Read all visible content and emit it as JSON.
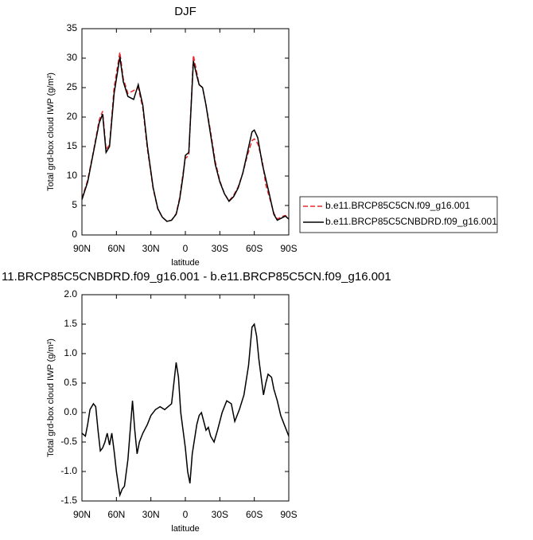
{
  "chart_data": [
    {
      "type": "line",
      "title": "DJF",
      "xlabel": "latitude",
      "ylabel": "Total grd-box cloud IWP (g/m²)",
      "x": [
        90,
        85,
        80,
        75,
        72,
        69,
        66,
        62,
        57,
        54,
        50,
        45,
        41,
        37,
        33,
        28,
        24,
        20,
        16,
        12,
        8,
        5,
        2,
        0,
        -3,
        -7,
        -10,
        -12,
        -15,
        -18,
        -22,
        -26,
        -30,
        -34,
        -38,
        -42,
        -46,
        -50,
        -54,
        -58,
        -60,
        -63,
        -67,
        -70,
        -73,
        -77,
        -80,
        -85,
        -87,
        -90
      ],
      "series": [
        {
          "name": "b.e11.BRCP85C5CN.f09_g16.001",
          "color": "#e8282d",
          "line_style": "dashed",
          "values": [
            6.2,
            9.3,
            14.2,
            19.5,
            21,
            14.5,
            15.3,
            25,
            31,
            26.5,
            24,
            24.5,
            25,
            21.5,
            14.5,
            7.8,
            4.4,
            3,
            2.3,
            2.5,
            3.6,
            6.3,
            10.5,
            13,
            13.5,
            30.5,
            27.5,
            25.5,
            25,
            22,
            17.5,
            12.5,
            9.2,
            7,
            5.8,
            6.7,
            8.2,
            10.5,
            13.5,
            16,
            16.3,
            15.5,
            12.5,
            8.5,
            6.5,
            3.7,
            2.7,
            3.2,
            3.3,
            2.8
          ]
        },
        {
          "name": "b.e11.BRCP85C5CNBDRD.f09_g16.001",
          "color": "#000000",
          "line_style": "solid",
          "values": [
            6,
            9,
            14,
            19,
            20.5,
            14,
            15,
            24,
            30.2,
            26,
            23.5,
            23,
            25.5,
            22,
            15,
            8,
            4.5,
            3,
            2.3,
            2.5,
            3.5,
            6,
            10,
            13.5,
            14,
            29.5,
            27,
            25.5,
            25,
            22,
            17,
            12,
            9,
            7,
            5.7,
            6.5,
            8,
            10.5,
            14,
            17.5,
            17.8,
            16.5,
            12,
            9.5,
            7,
            3.5,
            2.5,
            3,
            3.2,
            2.7
          ]
        }
      ],
      "xlim": [
        90,
        -90
      ],
      "xticks": [
        {
          "value": 90,
          "label": "90N"
        },
        {
          "value": 60,
          "label": "60N"
        },
        {
          "value": 30,
          "label": "30N"
        },
        0,
        {
          "value": -30,
          "label": "30S"
        },
        {
          "value": -60,
          "label": "60S"
        },
        {
          "value": -90,
          "label": "90S"
        }
      ],
      "ylim": [
        0,
        35
      ],
      "yticks": [
        0,
        5,
        10,
        15,
        20,
        25,
        30,
        35
      ],
      "legend": "outside-right"
    },
    {
      "type": "line",
      "title": "11.BRCP85C5CNBDRD.f09_g16.001 - b.e11.BRCP85C5CN.f09_g16.001",
      "xlabel": "latitude",
      "ylabel": "Total grd-box cloud IWP (g/m²)",
      "x": [
        90,
        87,
        85,
        83,
        80,
        78,
        76,
        74,
        72,
        70,
        68,
        66,
        64,
        62,
        60,
        57,
        55,
        53,
        50,
        48,
        46,
        44,
        42,
        40,
        37,
        33,
        30,
        26,
        22,
        18,
        15,
        12,
        10,
        8,
        6,
        4,
        2,
        0,
        -2,
        -4,
        -6,
        -8,
        -10,
        -12,
        -14,
        -16,
        -18,
        -20,
        -22,
        -25,
        -28,
        -32,
        -36,
        -40,
        -43,
        -47,
        -51,
        -55,
        -58,
        -60,
        -62,
        -64,
        -66,
        -68,
        -70,
        -72,
        -75,
        -77,
        -80,
        -83,
        -86,
        -90
      ],
      "series": [
        {
          "color": "#000000",
          "line_style": "solid",
          "values": [
            -0.35,
            -0.4,
            -0.2,
            0.05,
            0.15,
            0.1,
            -0.3,
            -0.65,
            -0.6,
            -0.5,
            -0.35,
            -0.55,
            -0.35,
            -0.65,
            -1.0,
            -1.4,
            -1.3,
            -1.25,
            -0.8,
            -0.3,
            0.2,
            -0.3,
            -0.7,
            -0.5,
            -0.35,
            -0.2,
            -0.05,
            0.05,
            0.1,
            0.05,
            0.1,
            0.15,
            0.5,
            0.85,
            0.6,
            0,
            -0.3,
            -0.6,
            -1.0,
            -1.2,
            -0.7,
            -0.45,
            -0.2,
            -0.05,
            0,
            -0.15,
            -0.3,
            -0.25,
            -0.4,
            -0.5,
            -0.3,
            0,
            0.2,
            0.15,
            -0.15,
            0.05,
            0.3,
            0.8,
            1.45,
            1.5,
            1.3,
            0.9,
            0.6,
            0.3,
            0.5,
            0.65,
            0.6,
            0.4,
            0.2,
            -0.05,
            -0.2,
            -0.4
          ]
        }
      ],
      "xlim": [
        90,
        -90
      ],
      "xticks": [
        {
          "value": 90,
          "label": "90N"
        },
        {
          "value": 60,
          "label": "60N"
        },
        {
          "value": 30,
          "label": "30N"
        },
        0,
        {
          "value": -30,
          "label": "30S"
        },
        {
          "value": -60,
          "label": "60S"
        },
        {
          "value": -90,
          "label": "90S"
        }
      ],
      "ylim": [
        -1.5,
        2.0
      ],
      "yticks": [
        -1.5,
        {
          "value": -1.0,
          "label": "-1.0"
        },
        -0.5,
        {
          "value": 0,
          "label": "0.0"
        },
        0.5,
        {
          "value": 1.0,
          "label": "1.0"
        },
        1.5,
        {
          "value": 2.0,
          "label": "2.0"
        }
      ]
    }
  ]
}
